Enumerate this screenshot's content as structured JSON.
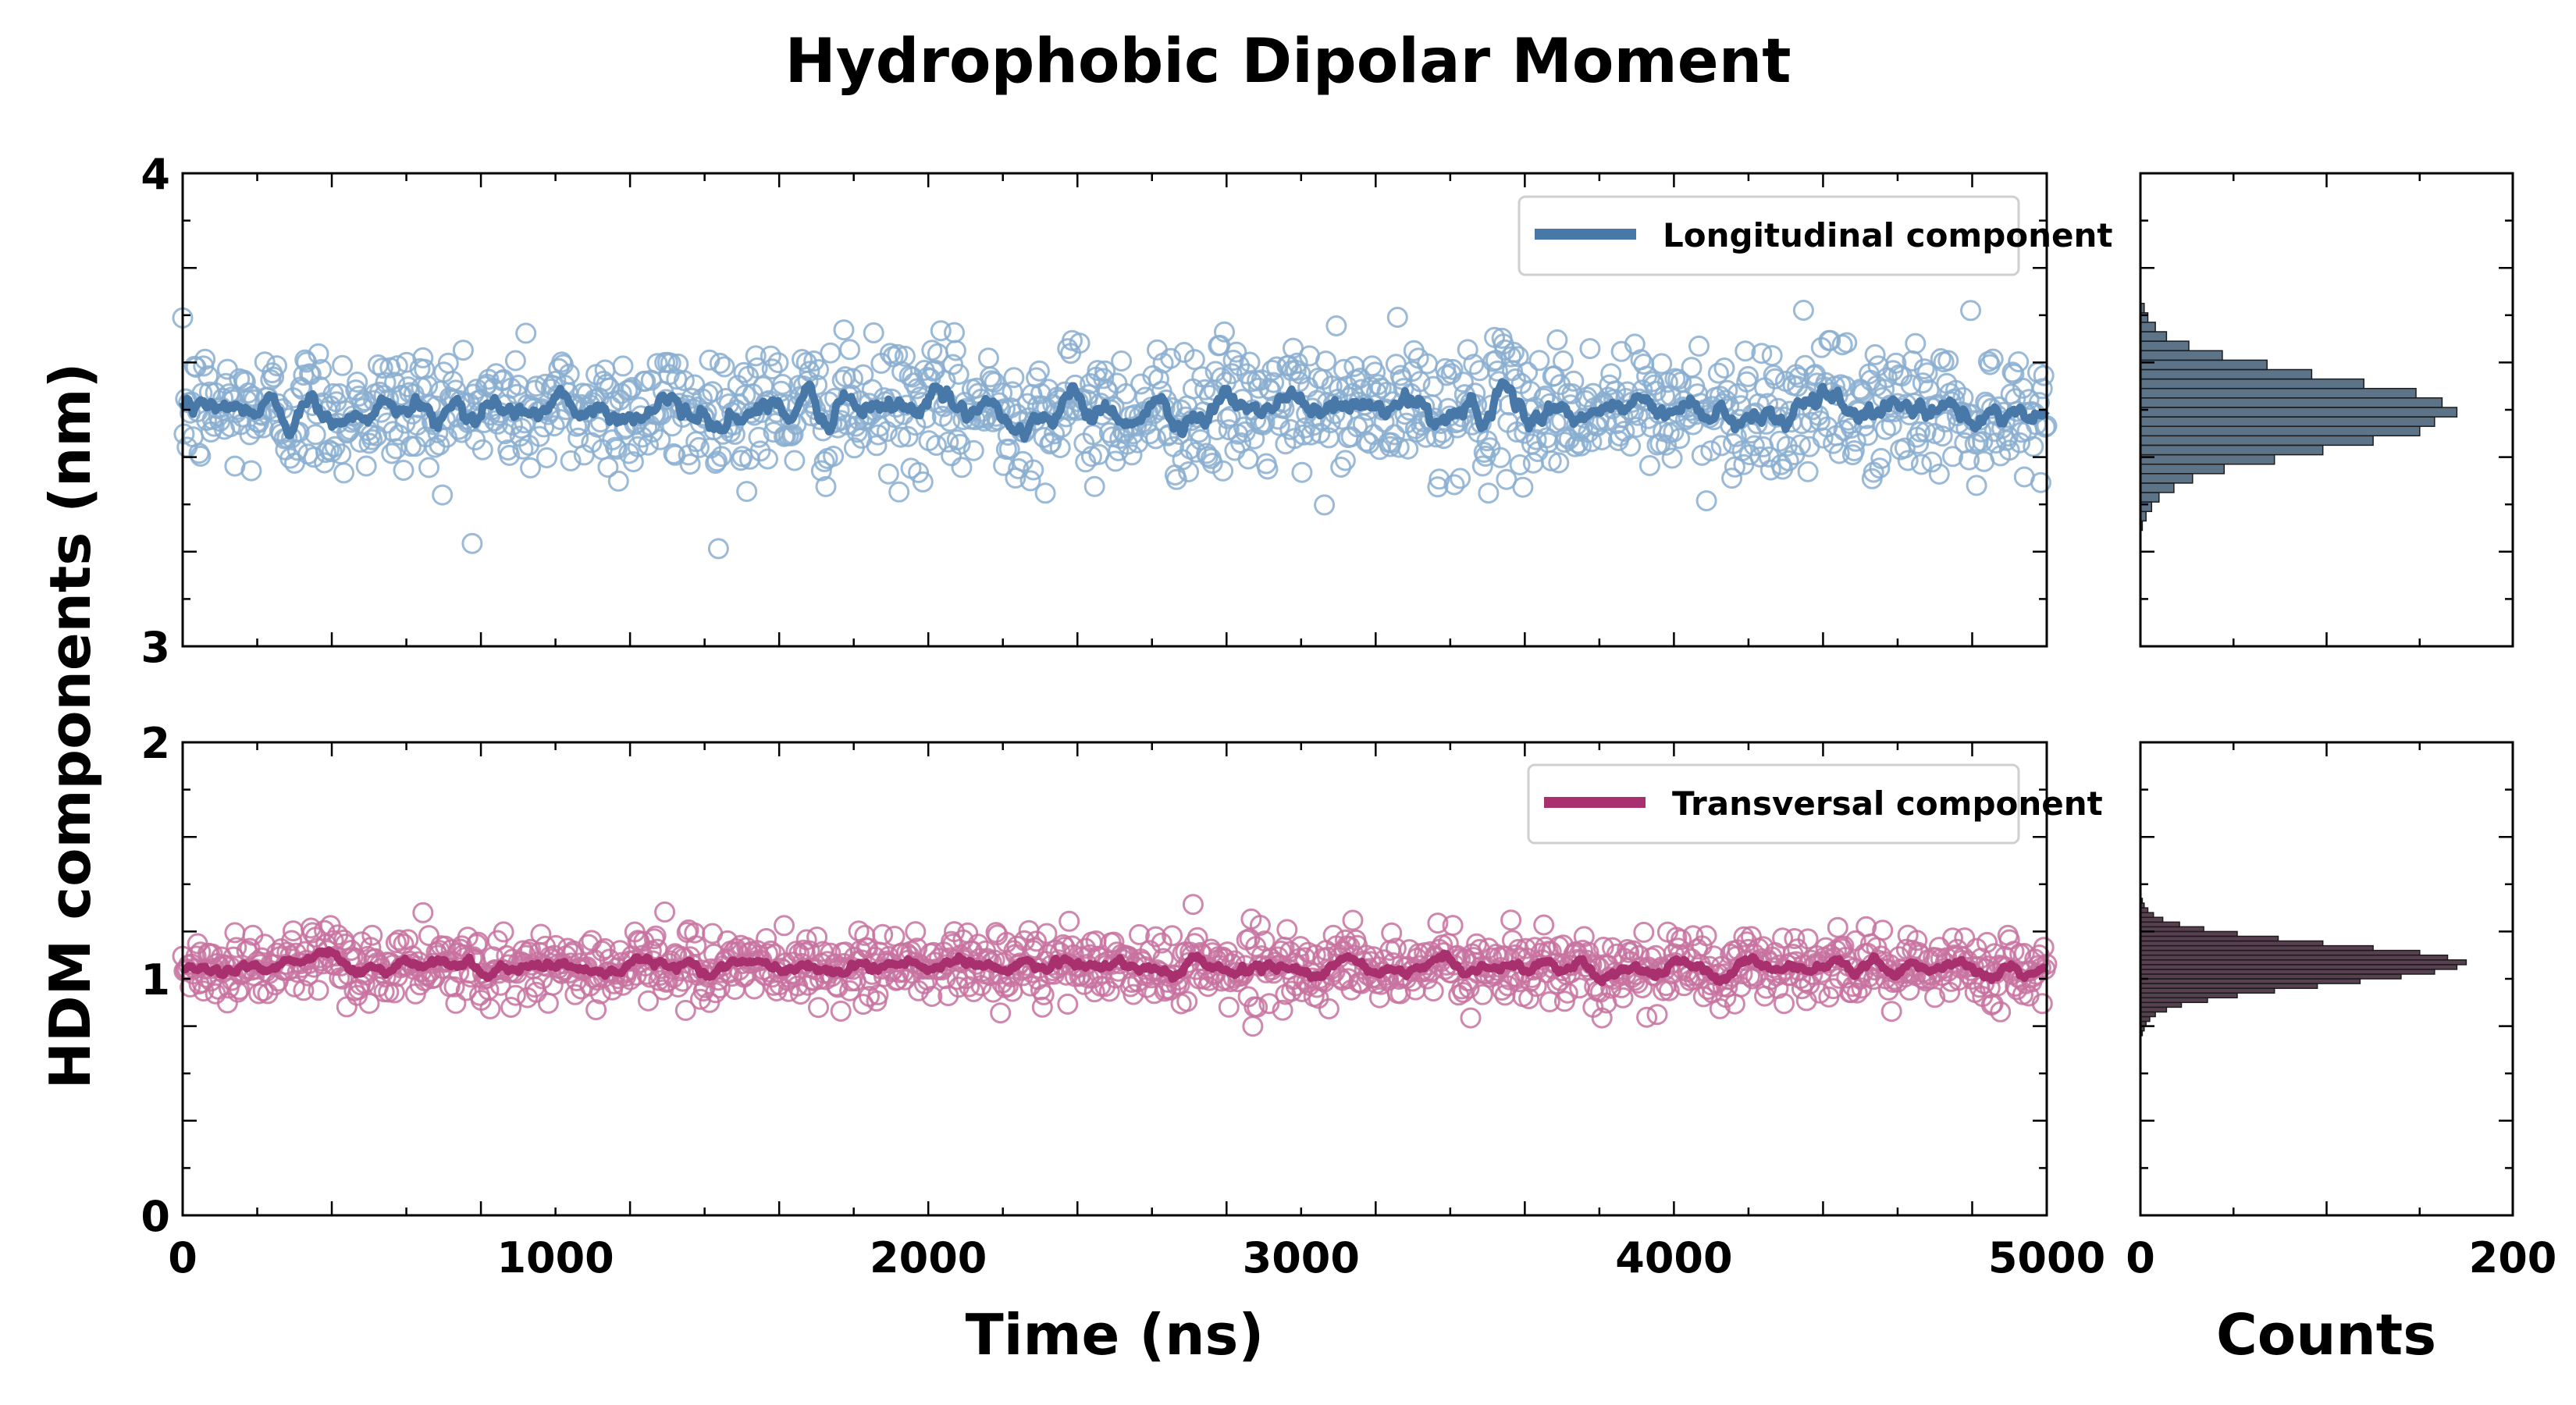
{
  "figure": {
    "title": "Hydrophobic Dipolar Moment",
    "ylabel": "HDM components (nm)",
    "xlabel_time": "Time (ns)",
    "xlabel_counts": "Counts"
  },
  "colors": {
    "longitudinal": "#4878a8",
    "longitudinal_marker": "#8aaed0",
    "transversal": "#a8306e",
    "transversal_marker": "#c872a0",
    "hist_top": "#3f5a73",
    "hist_bottom": "#3a1e30"
  },
  "chart_data": [
    {
      "type": "scatter",
      "panel": "top-left",
      "series": [
        {
          "name": "Longitudinal component",
          "kind": "scatter+running-mean",
          "mean": 3.5,
          "sd": 0.07,
          "n_points": 1250,
          "seed": 12345
        }
      ],
      "xlim": [
        0,
        5000
      ],
      "ylim": [
        3,
        4
      ],
      "xticks_major": [
        0,
        1000,
        2000,
        3000,
        4000,
        5000
      ],
      "yticks_major": [
        3,
        4
      ],
      "ytick_labels": [
        "3",
        "4"
      ],
      "legend": {
        "position": "top-right",
        "entries": [
          "Longitudinal component"
        ]
      }
    },
    {
      "type": "scatter",
      "panel": "bottom-left",
      "series": [
        {
          "name": "Transversal component",
          "kind": "scatter+running-mean",
          "mean": 1.05,
          "sd": 0.075,
          "n_points": 1250,
          "seed": 67890
        }
      ],
      "xlim": [
        0,
        5000
      ],
      "ylim": [
        0,
        2
      ],
      "xticks_major": [
        0,
        1000,
        2000,
        3000,
        4000,
        5000
      ],
      "xtick_labels": [
        "0",
        "1000",
        "2000",
        "3000",
        "4000",
        "5000"
      ],
      "yticks_major": [
        0,
        1,
        2
      ],
      "ytick_labels": [
        "0",
        "1",
        "2"
      ],
      "legend": {
        "position": "top-right",
        "entries": [
          "Transversal component"
        ]
      },
      "xlabel": "Time (ns)"
    },
    {
      "type": "bar",
      "orientation": "horizontal",
      "panel": "top-right",
      "series_name": "Longitudinal component",
      "bin_centers": [
        3.255,
        3.275,
        3.295,
        3.315,
        3.335,
        3.355,
        3.375,
        3.395,
        3.415,
        3.435,
        3.455,
        3.475,
        3.495,
        3.515,
        3.535,
        3.555,
        3.575,
        3.595,
        3.615,
        3.635,
        3.655,
        3.675,
        3.695,
        3.715
      ],
      "counts": [
        1,
        3,
        6,
        10,
        18,
        28,
        45,
        72,
        98,
        125,
        150,
        158,
        170,
        162,
        148,
        120,
        92,
        68,
        44,
        26,
        14,
        8,
        4,
        2
      ],
      "xlim": [
        0,
        200
      ],
      "ylim": [
        3,
        4
      ]
    },
    {
      "type": "bar",
      "orientation": "horizontal",
      "panel": "bottom-right",
      "series_name": "Transversal component",
      "bin_centers": [
        0.77,
        0.79,
        0.81,
        0.83,
        0.85,
        0.87,
        0.89,
        0.91,
        0.93,
        0.95,
        0.97,
        0.99,
        1.01,
        1.03,
        1.05,
        1.07,
        1.09,
        1.11,
        1.13,
        1.15,
        1.17,
        1.19,
        1.21,
        1.23,
        1.25,
        1.27,
        1.29,
        1.31,
        1.33
      ],
      "counts": [
        1,
        2,
        3,
        5,
        8,
        14,
        22,
        36,
        52,
        72,
        95,
        118,
        140,
        158,
        170,
        175,
        165,
        150,
        125,
        98,
        74,
        52,
        34,
        21,
        12,
        7,
        4,
        2,
        1
      ],
      "xlim": [
        0,
        200
      ],
      "xticks_major": [
        0,
        200
      ],
      "xtick_labels": [
        "0",
        "200"
      ],
      "ylim": [
        0,
        2
      ],
      "xlabel": "Counts"
    }
  ]
}
